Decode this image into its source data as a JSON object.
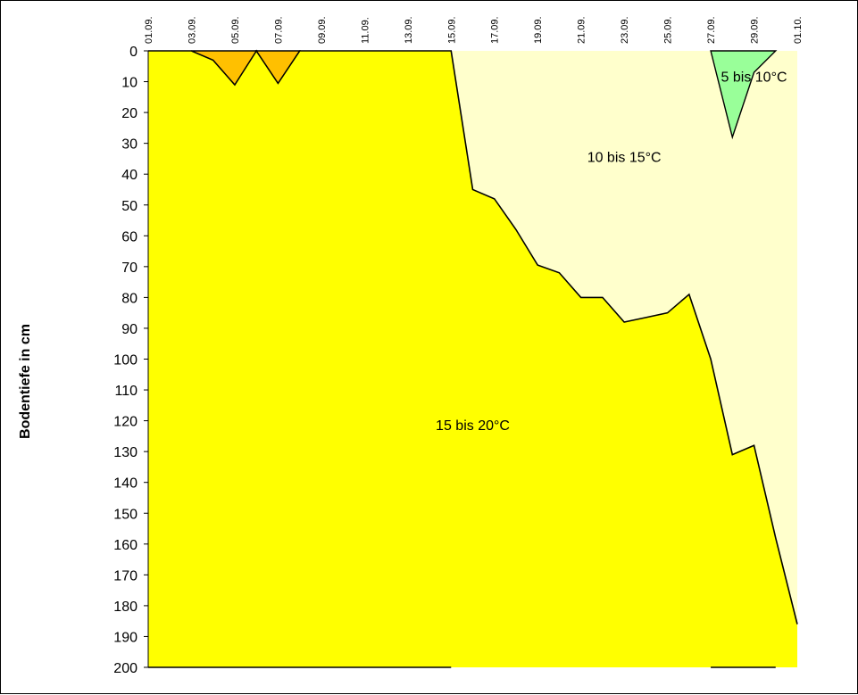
{
  "chart_data": {
    "type": "area",
    "ylabel": "Bodentiefe in cm",
    "y_axis": {
      "range": [
        0,
        200
      ],
      "reversed": true,
      "ticks": [
        0,
        10,
        20,
        30,
        40,
        50,
        60,
        70,
        80,
        90,
        100,
        110,
        120,
        130,
        140,
        150,
        160,
        170,
        180,
        190,
        200
      ]
    },
    "x_axis": {
      "start": "01.09.",
      "end": "01.10.",
      "tick_labels": [
        "01.09.",
        "03.09.",
        "05.09.",
        "07.09.",
        "09.09.",
        "11.09.",
        "13.09.",
        "15.09.",
        "17.09.",
        "19.09.",
        "21.09.",
        "23.09.",
        "25.09.",
        "27.09.",
        "29.09.",
        "01.10."
      ],
      "position": "top"
    },
    "background_color": "#FFFFCC",
    "series": [
      {
        "name": "15 bis 20°C",
        "color": "#FFFF00",
        "boundary": [
          {
            "x": "01.09.",
            "y": 0
          },
          {
            "x": "03.09.",
            "y": 0
          },
          {
            "x": "04.09.",
            "y": 3
          },
          {
            "x": "05.09.",
            "y": 11
          },
          {
            "x": "06.09.",
            "y": 0
          },
          {
            "x": "07.09.",
            "y": 10.5
          },
          {
            "x": "08.09.",
            "y": 0
          },
          {
            "x": "15.09.",
            "y": 0
          },
          {
            "x": "16.09.",
            "y": 45
          },
          {
            "x": "17.09.",
            "y": 48
          },
          {
            "x": "18.09.",
            "y": 58
          },
          {
            "x": "19.09.",
            "y": 69.5
          },
          {
            "x": "20.09.",
            "y": 72
          },
          {
            "x": "21.09.",
            "y": 80
          },
          {
            "x": "22.09.",
            "y": 80
          },
          {
            "x": "23.09.",
            "y": 88
          },
          {
            "x": "24.09.",
            "y": 86.5
          },
          {
            "x": "25.09.",
            "y": 85
          },
          {
            "x": "26.09.",
            "y": 79
          },
          {
            "x": "27.09.",
            "y": 100
          },
          {
            "x": "28.09.",
            "y": 131
          },
          {
            "x": "29.09.",
            "y": 128
          },
          {
            "x": "30.09.",
            "y": 158
          },
          {
            "x": "01.10.",
            "y": 186
          }
        ]
      },
      {
        "name": "",
        "color": "#FFC000",
        "patches": [
          [
            {
              "x": "04.09.",
              "y": 3
            },
            {
              "x": "05.09.",
              "y": 11
            },
            {
              "x": "06.09.",
              "y": 0
            },
            {
              "x": "03.09.",
              "y": 0
            }
          ],
          [
            {
              "x": "06.09.",
              "y": 0
            },
            {
              "x": "07.09.",
              "y": 10.5
            },
            {
              "x": "08.09.",
              "y": 0
            }
          ]
        ]
      },
      {
        "name": "5 bis 10°C",
        "color": "#99FF99",
        "patches": [
          [
            {
              "x": "27.09.",
              "y": 0
            },
            {
              "x": "28.09.",
              "y": 28
            },
            {
              "x": "29.09.",
              "y": 7
            },
            {
              "x": "30.09.",
              "y": 0
            }
          ]
        ]
      }
    ],
    "zone_labels": [
      {
        "text": "15 bis 20°C",
        "x": "16.09.",
        "y": 123
      },
      {
        "text": "10 bis 15°C",
        "x": "23.09.",
        "y": 36
      },
      {
        "text": "5 bis 10°C",
        "x": "29.09.",
        "y": 10
      }
    ],
    "legend": "none",
    "grid": false
  }
}
